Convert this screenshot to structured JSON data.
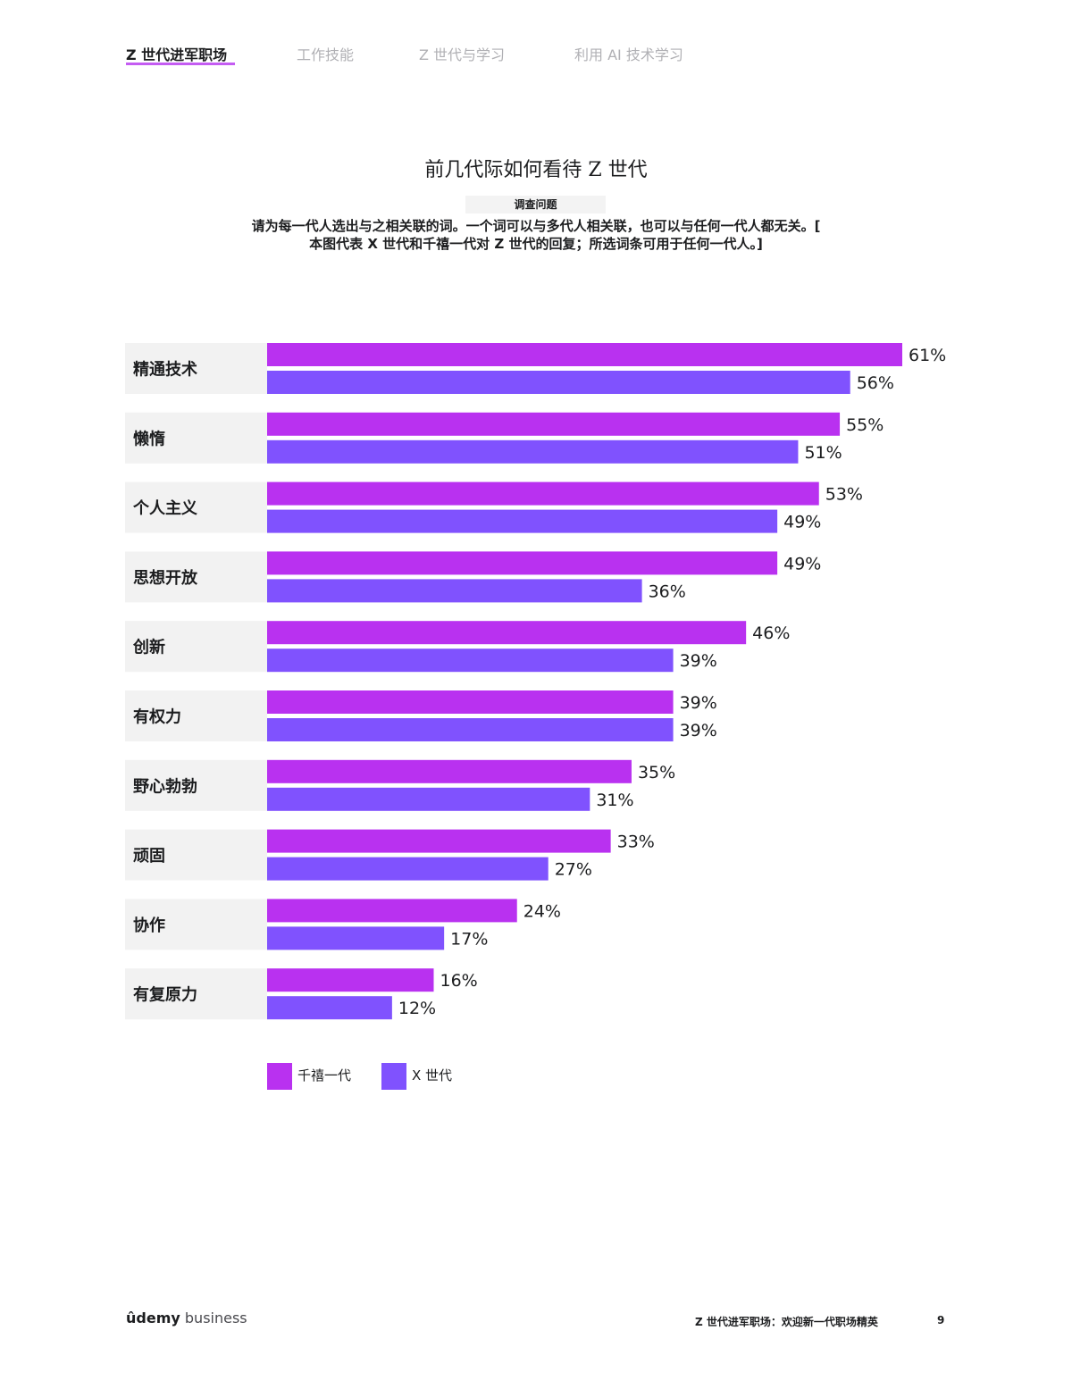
{
  "nav": {
    "tabs": [
      {
        "label": "Z 世代进军职场",
        "active": true
      },
      {
        "label": "工作技能",
        "active": false
      },
      {
        "label": "Z 世代与学习",
        "active": false
      },
      {
        "label": "利用 AI 技术学习",
        "active": false
      }
    ]
  },
  "header": {
    "survey_label": "调查问题",
    "question_line1": "请为每一代人选出与之相关联的词。一个词可以与多代人相关联，也可以与任何一代人都无关。[",
    "question_line2": "本图代表 X 世代和千禧一代对 Z 世代的回复；所选词条可用于任何一代人。]"
  },
  "chart_data": {
    "type": "bar",
    "orientation": "horizontal",
    "title": "前几代际如何看待 Z 世代",
    "categories": [
      "精通技术",
      "懒惰",
      "个人主义",
      "思想开放",
      "创新",
      "有权力",
      "野心勃勃",
      "顽固",
      "协作",
      "有复原力"
    ],
    "series": [
      {
        "name": "千禧一代",
        "color": "#b931f0",
        "values": [
          61,
          55,
          53,
          49,
          46,
          39,
          35,
          33,
          24,
          16
        ]
      },
      {
        "name": "X 世代",
        "color": "#8052fe",
        "values": [
          56,
          51,
          49,
          36,
          39,
          39,
          31,
          27,
          17,
          12
        ]
      }
    ],
    "value_suffix": "%",
    "xlim": [
      0,
      61
    ],
    "grid": false,
    "legend": "bottom-left"
  },
  "footer": {
    "brand": "ûdemy",
    "brand_sub": "business",
    "doc_title": "Z 世代进军职场：欢迎新一代职场精英",
    "page_number": "9"
  }
}
